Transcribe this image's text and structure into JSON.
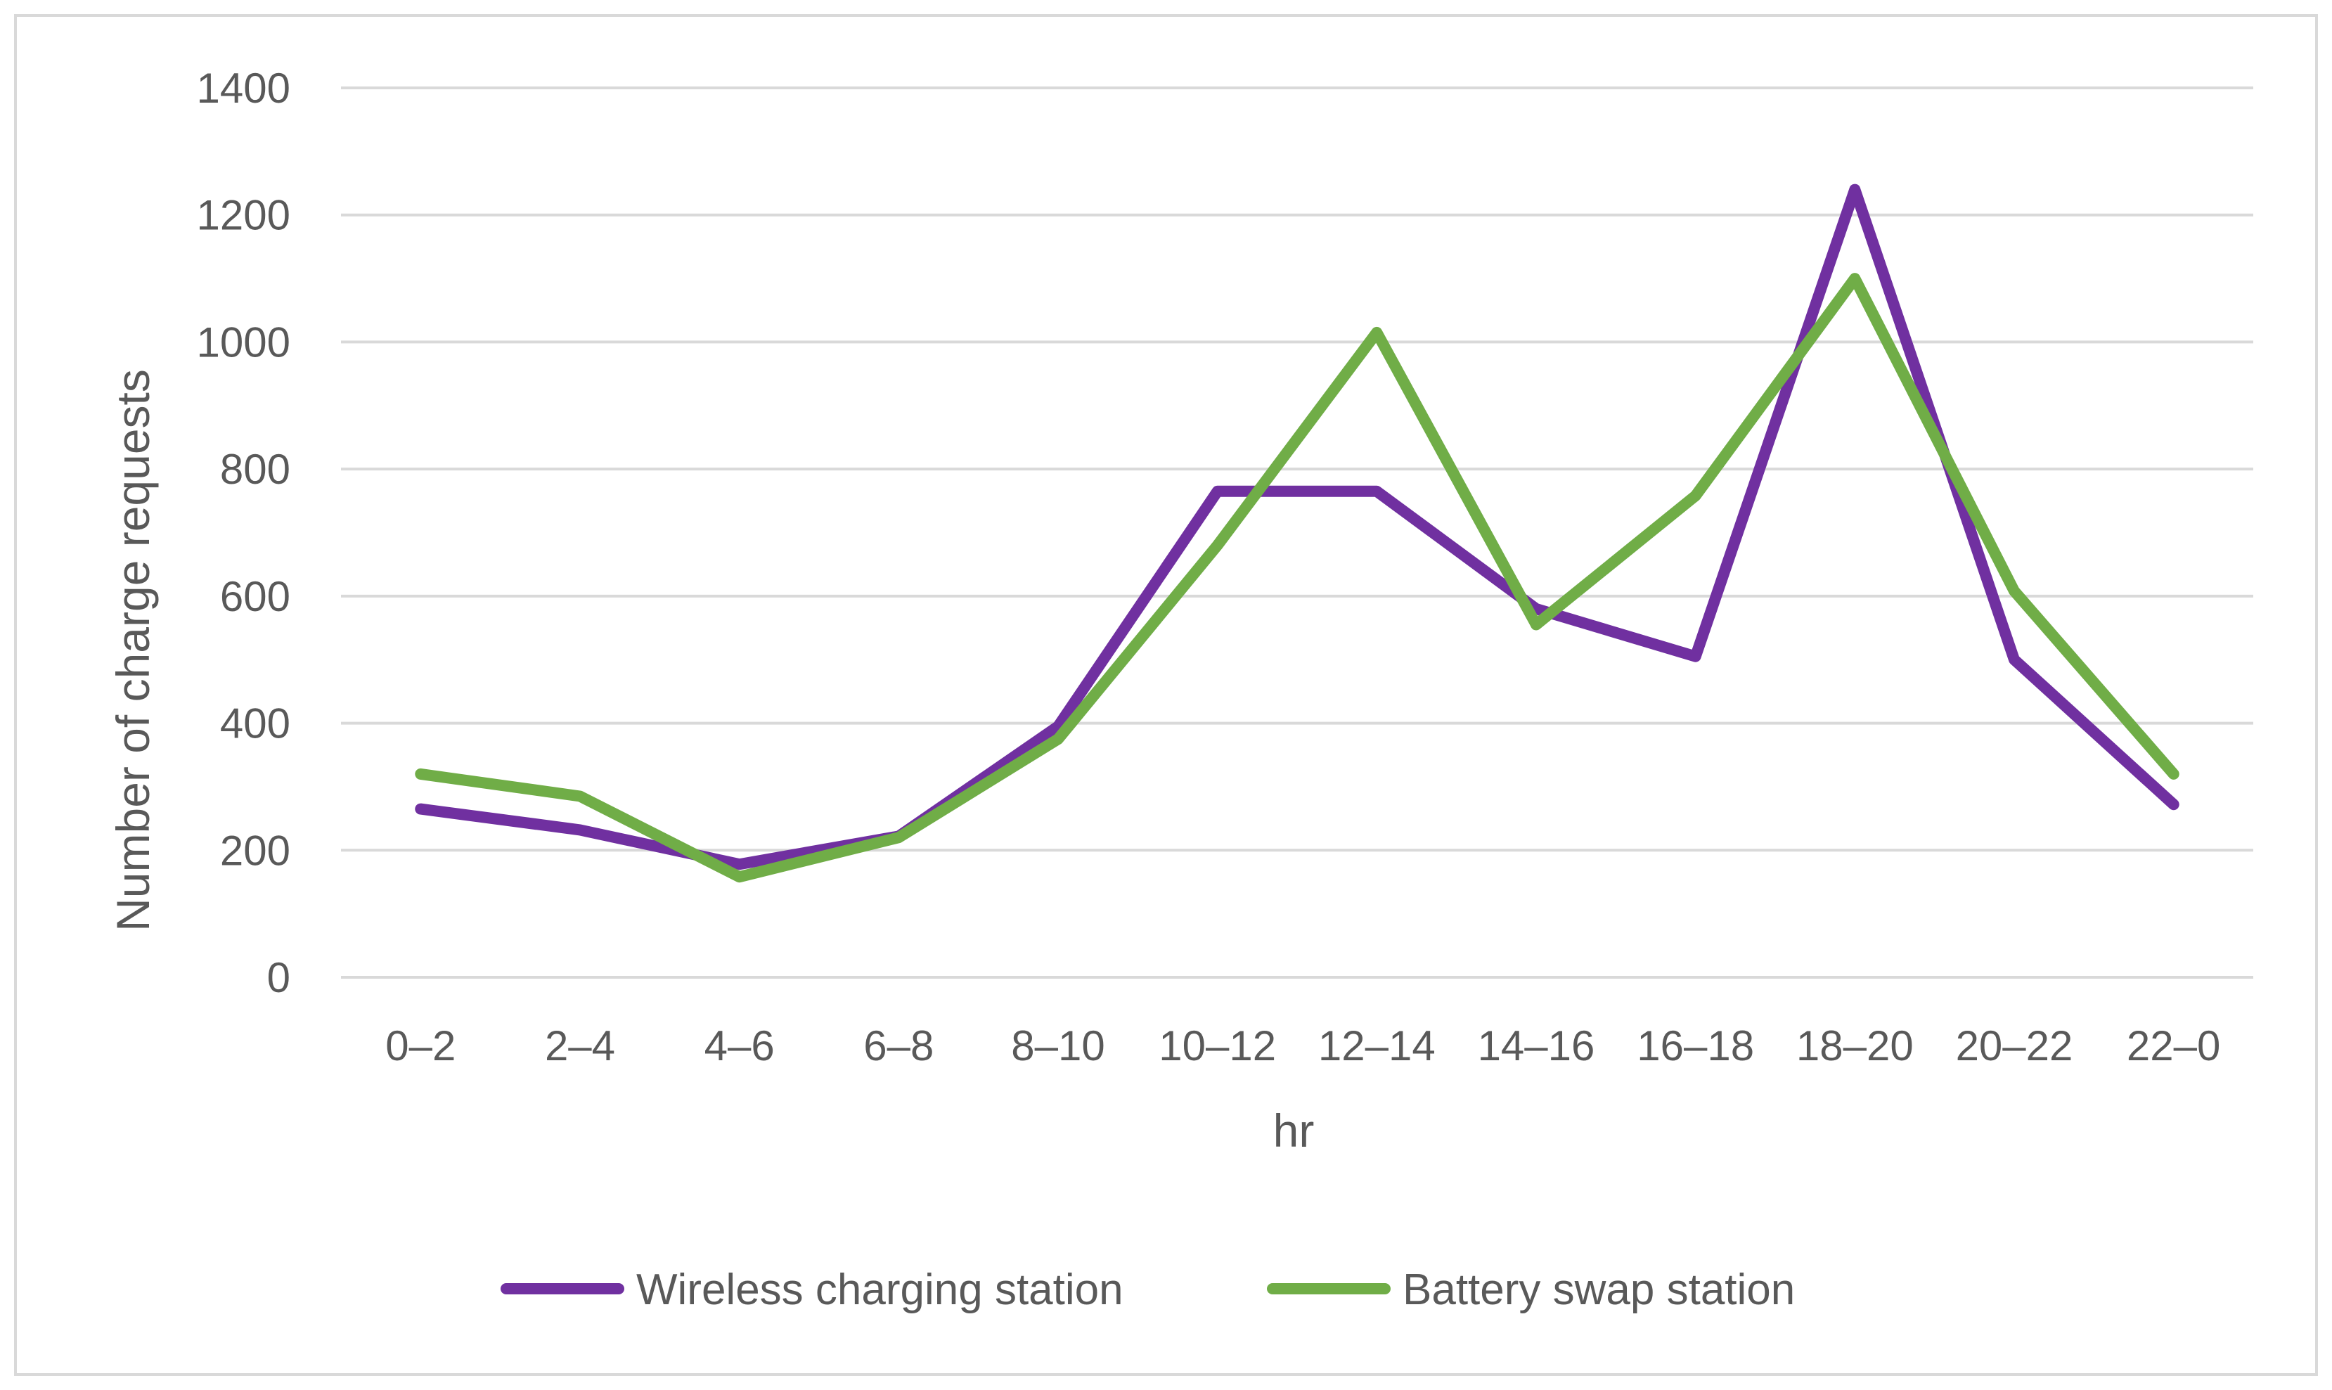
{
  "chart_data": {
    "type": "line",
    "title": "",
    "xlabel": "hr",
    "ylabel": "Number of charge requests",
    "ylim": [
      0,
      1400
    ],
    "yticks": [
      0,
      200,
      400,
      600,
      800,
      1000,
      1200,
      1400
    ],
    "grid": true,
    "legend_position": "bottom",
    "categories": [
      "0–2",
      "2–4",
      "4–6",
      "6–8",
      "8–10",
      "10–12",
      "12–14",
      "14–16",
      "16–18",
      "18–20",
      "20–22",
      "22–0"
    ],
    "series": [
      {
        "name": "Wireless charging station",
        "color": "#7030a0",
        "values": [
          265,
          232,
          178,
          222,
          395,
          765,
          765,
          580,
          505,
          1240,
          500,
          272
        ]
      },
      {
        "name": "Battery swap station",
        "color": "#70ad47",
        "values": [
          320,
          285,
          158,
          220,
          375,
          680,
          1015,
          555,
          758,
          1100,
          608,
          320
        ]
      }
    ]
  }
}
